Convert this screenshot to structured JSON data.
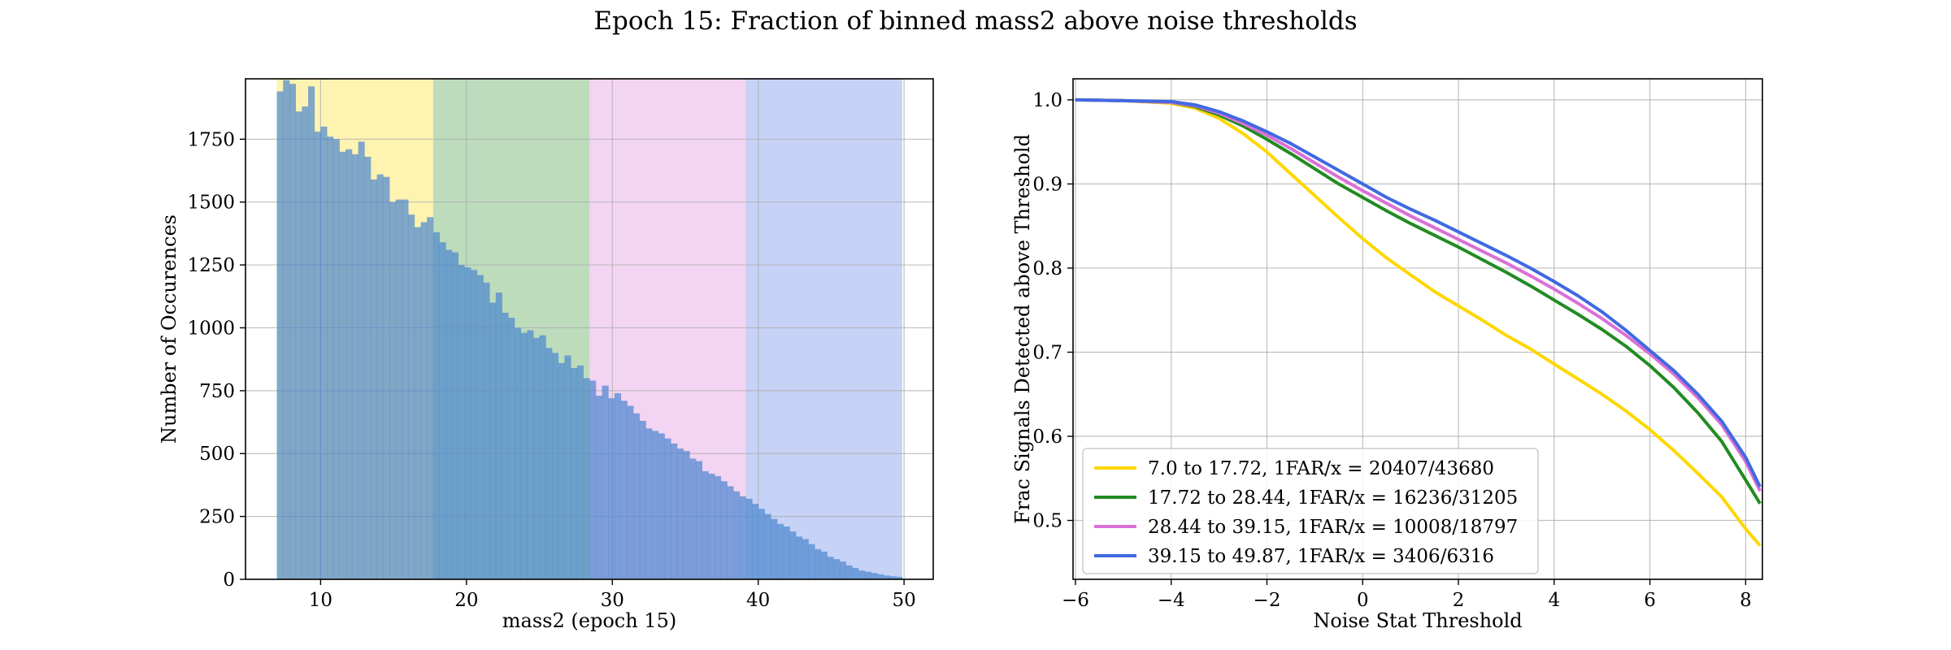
{
  "figure": {
    "title": "Epoch 15: Fraction of binned mass2 above noise thresholds"
  },
  "chart_data": [
    {
      "type": "bar",
      "subtype": "histogram",
      "xlabel": "mass2 (epoch 15)",
      "ylabel": "Number of Occurences",
      "xlim": [
        4.85,
        52.0
      ],
      "ylim": [
        0,
        1990
      ],
      "xticks": [
        10,
        20,
        30,
        40,
        50
      ],
      "xtick_labels": [
        "10",
        "20",
        "30",
        "40",
        "50"
      ],
      "yticks": [
        0,
        250,
        500,
        750,
        1000,
        1250,
        1500,
        1750
      ],
      "ytick_labels": [
        "0",
        "250",
        "500",
        "750",
        "1000",
        "1250",
        "1500",
        "1750"
      ],
      "grid": true,
      "bin_range": [
        7.0,
        49.87
      ],
      "bin_edges_count": 101,
      "counts": [
        1940,
        1985,
        1970,
        1860,
        1880,
        1960,
        1780,
        1800,
        1760,
        1750,
        1700,
        1710,
        1690,
        1740,
        1680,
        1590,
        1610,
        1600,
        1500,
        1510,
        1510,
        1450,
        1400,
        1420,
        1440,
        1380,
        1340,
        1310,
        1300,
        1250,
        1240,
        1230,
        1210,
        1180,
        1100,
        1140,
        1060,
        1040,
        1000,
        980,
        990,
        960,
        970,
        920,
        900,
        860,
        890,
        840,
        850,
        800,
        790,
        730,
        770,
        720,
        740,
        710,
        690,
        660,
        630,
        600,
        590,
        580,
        560,
        540,
        520,
        510,
        480,
        470,
        430,
        420,
        410,
        390,
        370,
        350,
        330,
        320,
        300,
        280,
        260,
        240,
        220,
        210,
        190,
        170,
        160,
        140,
        120,
        110,
        90,
        80,
        70,
        55,
        45,
        35,
        30,
        25,
        20,
        15,
        12,
        10
      ],
      "shaded_regions": [
        {
          "x": [
            7.0,
            17.72
          ],
          "color": "#FFD700",
          "alpha": 0.3
        },
        {
          "x": [
            17.72,
            28.44
          ],
          "color": "#228B22",
          "alpha": 0.3
        },
        {
          "x": [
            28.44,
            39.15
          ],
          "color": "#DA70D6",
          "alpha": 0.3
        },
        {
          "x": [
            39.15,
            49.87
          ],
          "color": "#4169E1",
          "alpha": 0.3
        }
      ],
      "bar_color": "#4A86CF"
    },
    {
      "type": "line",
      "xlabel": "Noise Stat Threshold",
      "ylabel": "Frac Signals Detected above Threshold",
      "xlim": [
        -6.05,
        8.35
      ],
      "ylim": [
        0.43,
        1.025
      ],
      "xticks": [
        -6,
        -4,
        -2,
        0,
        2,
        4,
        6,
        8
      ],
      "xtick_labels": [
        "−6",
        "−4",
        "−2",
        "0",
        "2",
        "4",
        "6",
        "8"
      ],
      "yticks": [
        0.5,
        0.6,
        0.7,
        0.8,
        0.9,
        1.0
      ],
      "ytick_labels": [
        "0.5",
        "0.6",
        "0.7",
        "0.8",
        "0.9",
        "1.0"
      ],
      "grid": true,
      "legend": {
        "placement": "lower-left"
      },
      "x": [
        -6,
        -5,
        -4,
        -3.5,
        -3,
        -2.5,
        -2,
        -1.5,
        -1,
        -0.5,
        0,
        0.5,
        1,
        1.5,
        2,
        2.5,
        3,
        3.5,
        4,
        4.5,
        5,
        5.5,
        6,
        6.5,
        7,
        7.5,
        8,
        8.3
      ],
      "series": [
        {
          "name": "7.0 to 17.72, 1FAR/x = 20407/43680",
          "color": "#FFD700",
          "values": [
            1.0,
            0.999,
            0.996,
            0.99,
            0.978,
            0.96,
            0.938,
            0.912,
            0.886,
            0.86,
            0.835,
            0.812,
            0.792,
            0.772,
            0.755,
            0.738,
            0.72,
            0.704,
            0.686,
            0.668,
            0.65,
            0.63,
            0.608,
            0.583,
            0.556,
            0.528,
            0.49,
            0.47
          ]
        },
        {
          "name": "17.72 to 28.44, 1FAR/x = 16236/31205",
          "color": "#228B22",
          "values": [
            1.0,
            0.999,
            0.997,
            0.992,
            0.982,
            0.969,
            0.953,
            0.936,
            0.918,
            0.9,
            0.884,
            0.868,
            0.853,
            0.839,
            0.825,
            0.81,
            0.795,
            0.779,
            0.762,
            0.745,
            0.727,
            0.707,
            0.684,
            0.658,
            0.628,
            0.594,
            0.548,
            0.52
          ]
        },
        {
          "name": "28.44 to 39.15, 1FAR/x = 10008/18797",
          "color": "#DA70D6",
          "values": [
            1.0,
            0.999,
            0.997,
            0.993,
            0.984,
            0.972,
            0.958,
            0.942,
            0.925,
            0.908,
            0.892,
            0.877,
            0.862,
            0.848,
            0.834,
            0.82,
            0.806,
            0.791,
            0.775,
            0.758,
            0.74,
            0.72,
            0.698,
            0.674,
            0.646,
            0.614,
            0.57,
            0.535
          ]
        },
        {
          "name": "39.15 to 49.87, 1FAR/x = 3406/6316",
          "color": "#4169E1",
          "values": [
            1.0,
            0.999,
            0.998,
            0.994,
            0.986,
            0.975,
            0.962,
            0.948,
            0.932,
            0.916,
            0.9,
            0.884,
            0.87,
            0.857,
            0.843,
            0.829,
            0.815,
            0.8,
            0.784,
            0.767,
            0.748,
            0.726,
            0.702,
            0.678,
            0.65,
            0.618,
            0.575,
            0.54
          ]
        }
      ]
    }
  ]
}
